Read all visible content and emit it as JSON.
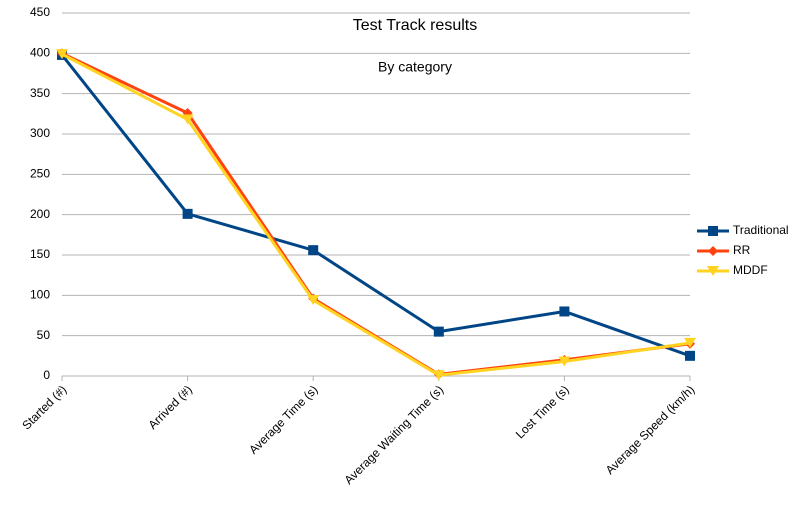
{
  "chart_data": {
    "type": "line",
    "title": "Test Track results",
    "subtitle": "By category",
    "categories": [
      "Started (#)",
      "Arrived (#)",
      "Average Time (s)",
      "Average Waiting Time (s)",
      "Lost Time (s)",
      "Average Speed (km/h)"
    ],
    "series": [
      {
        "name": "Traditional",
        "color": "#004586",
        "marker": "square",
        "values": [
          398,
          201,
          156,
          55,
          80,
          25
        ]
      },
      {
        "name": "RR",
        "color": "#ff420e",
        "marker": "diamond",
        "values": [
          400,
          326,
          96,
          2,
          20,
          40
        ]
      },
      {
        "name": "MDDF",
        "color": "#ffd320",
        "marker": "triangle-down",
        "values": [
          399,
          318,
          94,
          1,
          18,
          41
        ]
      }
    ],
    "ylim": [
      0,
      450
    ],
    "yticks": [
      0,
      50,
      100,
      150,
      200,
      250,
      300,
      350,
      400,
      450
    ],
    "grid": true,
    "legend": "right"
  }
}
